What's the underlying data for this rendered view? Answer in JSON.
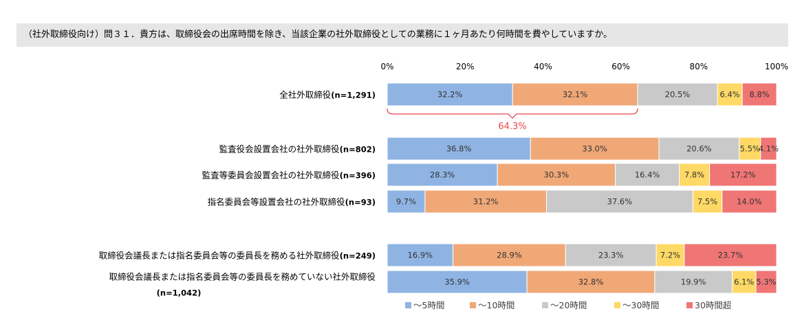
{
  "question": "（社外取締役向け）問３１．貴方は、取締役会の出席時間を除き、当該企業の社外取締役としての業務に１ヶ月あたり何時間を費やしていますか。",
  "chart_data": {
    "type": "bar",
    "orientation": "horizontal",
    "stacked": true,
    "percent_stacked": true,
    "xlim": [
      0,
      100
    ],
    "ticks": [
      "0%",
      "20%",
      "40%",
      "60%",
      "80%",
      "100%"
    ],
    "colors": [
      "#8fb4e3",
      "#f0a877",
      "#c9c9c9",
      "#ffd966",
      "#f07575"
    ],
    "categories": [
      {
        "label": "全社外取締役",
        "n": "(n=1,291)"
      },
      {
        "label": "監査役会設置会社の社外取締役",
        "n": "(n=802)"
      },
      {
        "label": "監査等委員会設置会社の社外取締役",
        "n": "(n=396)"
      },
      {
        "label": "指名委員会等設置会社の社外取締役",
        "n": "(n=93)"
      },
      {
        "label": "取締役会議長または指名委員会等の委員長を務める社外取締役",
        "n": "(n=249)"
      },
      {
        "label": "取締役会議長または指名委員会等の委員長を務めていない社外取締役",
        "n": "(n=1,042)"
      }
    ],
    "series": [
      {
        "name": "～5時間",
        "values": [
          32.2,
          36.8,
          28.3,
          9.7,
          16.9,
          35.9
        ],
        "labels": [
          "32.2%",
          "36.8%",
          "28.3%",
          "9.7%",
          "16.9%",
          "35.9%"
        ]
      },
      {
        "name": "～10時間",
        "values": [
          32.1,
          33.0,
          30.3,
          31.2,
          28.9,
          32.8
        ],
        "labels": [
          "32.1%",
          "33.0%",
          "30.3%",
          "31.2%",
          "28.9%",
          "32.8%"
        ]
      },
      {
        "name": "～20時間",
        "values": [
          20.5,
          20.6,
          16.4,
          37.6,
          23.3,
          19.9
        ],
        "labels": [
          "20.5%",
          "20.6%",
          "16.4%",
          "37.6%",
          "23.3%",
          "19.9%"
        ]
      },
      {
        "name": "～30時間",
        "values": [
          6.4,
          5.5,
          7.8,
          7.5,
          7.2,
          6.1
        ],
        "labels": [
          "6.4%",
          "5.5%",
          "7.8%",
          "7.5%",
          "7.2%",
          "6.1%"
        ]
      },
      {
        "name": "30時間超",
        "values": [
          8.8,
          4.1,
          17.2,
          14.0,
          23.7,
          5.3
        ],
        "labels": [
          "8.8%",
          "4.1%",
          "17.2%",
          "14.0%",
          "23.7%",
          "5.3%"
        ]
      }
    ],
    "annotation": {
      "text": "64.3%",
      "category_index": 0,
      "from": 0,
      "to": 64.3
    },
    "legend_position": "bottom"
  }
}
